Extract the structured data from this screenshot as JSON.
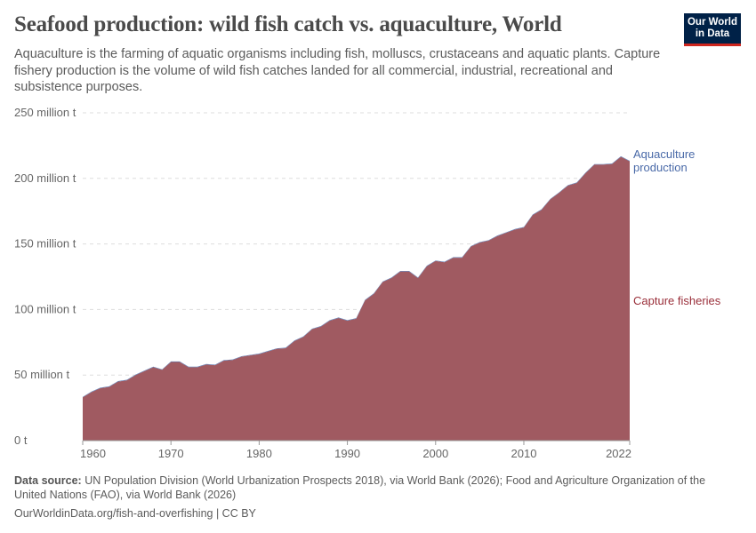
{
  "title": "Seafood production: wild fish catch vs. aquaculture, World",
  "subtitle": "Aquaculture is the farming of aquatic organisms including fish, molluscs, crustaceans and aquatic plants. Capture fishery production is the volume of wild fish catches landed for all commercial, industrial, recreational and subsistence purposes.",
  "logo": "Our World in Data",
  "footer": {
    "source_label": "Data source:",
    "source_text": "UN Population Division (World Urbanization Prospects 2018), via World Bank (2026); Food and Agriculture Organization of the United Nations (FAO), via World Bank (2026)",
    "url": "OurWorldinData.org/fish-and-overfishing | CC BY"
  },
  "chart_data": {
    "type": "area",
    "stacked": true,
    "ylim": [
      0,
      250
    ],
    "xlim": [
      1960,
      2022
    ],
    "yticks": [
      {
        "v": 0,
        "label": "0 t"
      },
      {
        "v": 50,
        "label": "50 million t"
      },
      {
        "v": 100,
        "label": "100 million t"
      },
      {
        "v": 150,
        "label": "150 million t"
      },
      {
        "v": 200,
        "label": "200 million t"
      },
      {
        "v": 250,
        "label": "250 million t"
      }
    ],
    "xticks": [
      1960,
      1970,
      1980,
      1990,
      2000,
      2010,
      2022
    ],
    "grid": true,
    "x": [
      1960,
      1961,
      1962,
      1963,
      1964,
      1965,
      1966,
      1967,
      1968,
      1969,
      1970,
      1971,
      1972,
      1973,
      1974,
      1975,
      1976,
      1977,
      1978,
      1979,
      1980,
      1981,
      1982,
      1983,
      1984,
      1985,
      1986,
      1987,
      1988,
      1989,
      1990,
      1991,
      1992,
      1993,
      1994,
      1995,
      1996,
      1997,
      1998,
      1999,
      2000,
      2001,
      2002,
      2003,
      2004,
      2005,
      2006,
      2007,
      2008,
      2009,
      2010,
      2011,
      2012,
      2013,
      2014,
      2015,
      2016,
      2017,
      2018,
      2019,
      2020,
      2021,
      2022
    ],
    "series": [
      {
        "name": "Capture fisheries",
        "color": "#a05a61",
        "label_color": "#9a2f3a",
        "values": [
          33,
          37,
          40,
          41,
          45,
          46,
          50,
          53,
          56,
          54,
          60,
          60,
          56,
          56,
          58,
          57.5,
          61,
          61.5,
          64,
          65,
          66,
          68,
          70,
          70.5,
          76,
          79,
          85,
          87,
          91.5,
          93.5,
          91.5,
          93,
          107,
          112,
          121,
          124,
          129,
          129,
          124,
          133,
          137,
          136,
          139.5,
          139.5,
          148,
          151,
          152.5,
          156,
          158.5,
          161,
          162.5,
          172,
          176,
          184,
          189,
          194.5,
          196.5,
          204,
          210.5,
          210.5,
          211,
          216.5,
          213
        ]
      },
      {
        "name": "Aquaculture production",
        "color": "#5b7bb5",
        "label_color": "#4a6aa8",
        "values": [
          0.4,
          0.4,
          0.4,
          0.4,
          0.4,
          0.4,
          0.4,
          0.4,
          0.4,
          0.4,
          0.4,
          0.4,
          0.4,
          0.4,
          0.4,
          0.4,
          0.4,
          0.4,
          0.4,
          0.4,
          0.4,
          0.4,
          0.4,
          0.4,
          0.4,
          0.4,
          0.4,
          0.4,
          0.4,
          0.4,
          0.4,
          0.4,
          0.4,
          0.4,
          0.4,
          0.4,
          0.4,
          0.4,
          0.4,
          0.4,
          0.4,
          0.4,
          0.4,
          0.4,
          0.4,
          0.4,
          0.4,
          0.4,
          0.4,
          0.4,
          0.4,
          0.4,
          0.4,
          0.4,
          0.4,
          0.4,
          0.4,
          0.4,
          0.4,
          0.4,
          0.4,
          0.4,
          0.4
        ]
      }
    ],
    "labels": {
      "aquaculture_line1": "Aquaculture",
      "aquaculture_line2": "production",
      "capture": "Capture fisheries"
    }
  }
}
